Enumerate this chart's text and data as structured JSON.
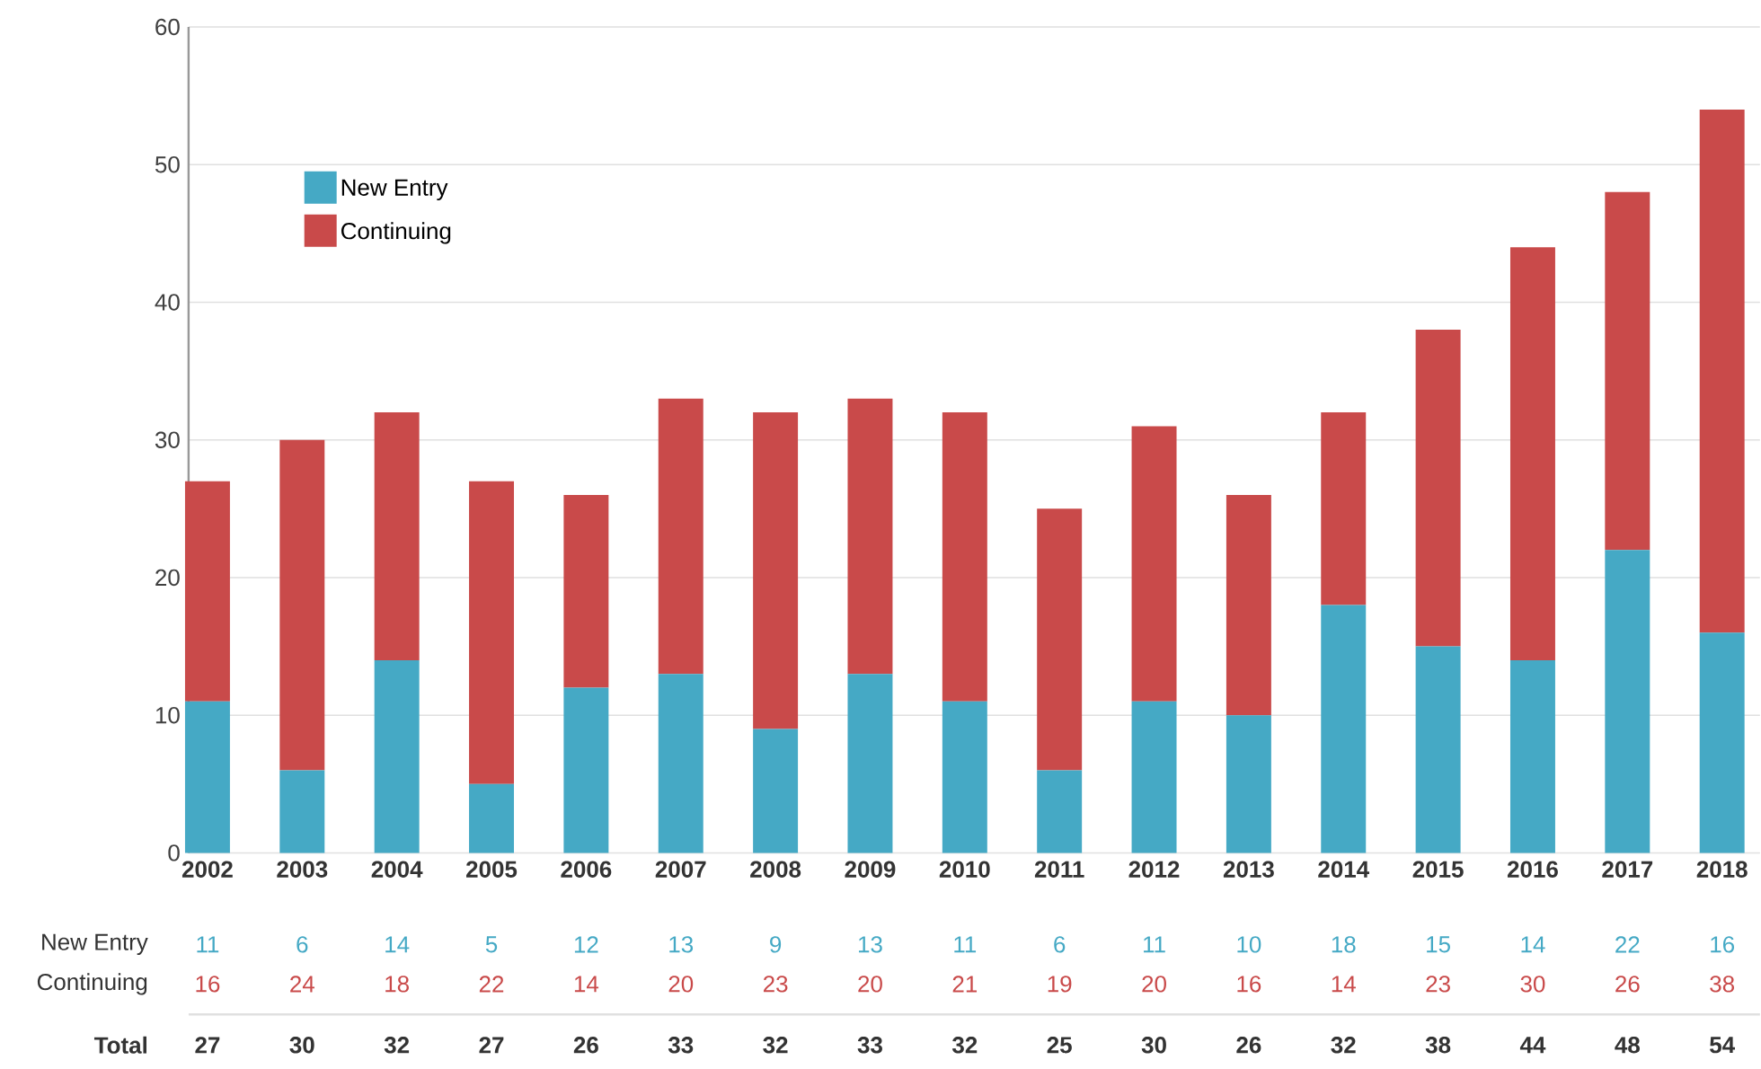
{
  "chart_data": {
    "type": "bar",
    "stacked": true,
    "categories": [
      "2002",
      "2003",
      "2004",
      "2005",
      "2006",
      "2007",
      "2008",
      "2009",
      "2010",
      "2011",
      "2012",
      "2013",
      "2014",
      "2015",
      "2016",
      "2017",
      "2018"
    ],
    "series": [
      {
        "name": "New Entry",
        "color": "#45a9c5",
        "values": [
          11,
          6,
          14,
          5,
          12,
          13,
          9,
          13,
          11,
          6,
          11,
          10,
          18,
          15,
          14,
          22,
          16
        ]
      },
      {
        "name": "Continuing",
        "color": "#c94a4a",
        "values": [
          16,
          24,
          18,
          22,
          14,
          20,
          23,
          20,
          21,
          19,
          20,
          16,
          14,
          23,
          30,
          26,
          38
        ]
      }
    ],
    "data_labels": true,
    "annotations": [
      "Total",
      "27",
      "30",
      "32",
      "27",
      "26",
      "33",
      "32",
      "33",
      "32",
      "25",
      "30",
      "26",
      "32",
      "38",
      "44",
      "48",
      "54"
    ],
    "ylim": [
      0,
      60
    ],
    "yticks": [
      0,
      10,
      20,
      30,
      40,
      50,
      60
    ],
    "grid": "y",
    "legend": "top left"
  }
}
